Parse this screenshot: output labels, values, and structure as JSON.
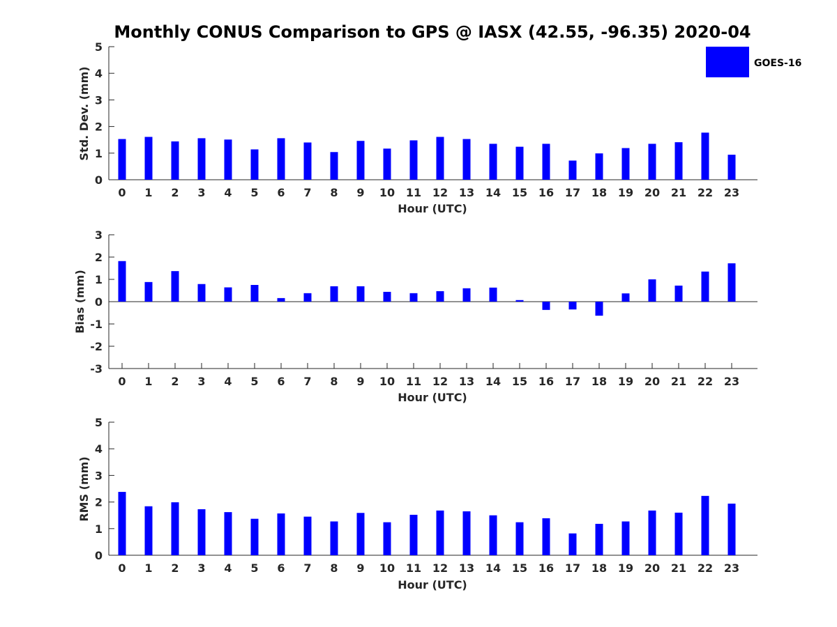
{
  "title": "Monthly CONUS Comparison to GPS @ IASX (42.55, -96.35) 2020-04",
  "legend": {
    "label": "GOES-16",
    "color": "#0000ff",
    "placement": "top-right"
  },
  "chart_data": [
    {
      "type": "bar",
      "xlabel": "Hour (UTC)",
      "ylabel": "Std. Dev. (mm)",
      "ylim": [
        0,
        5
      ],
      "yticks": [
        0,
        1,
        2,
        3,
        4,
        5
      ],
      "categories": [
        "0",
        "1",
        "2",
        "3",
        "4",
        "5",
        "6",
        "7",
        "8",
        "9",
        "10",
        "11",
        "12",
        "13",
        "14",
        "15",
        "16",
        "17",
        "18",
        "19",
        "20",
        "21",
        "22",
        "23"
      ],
      "series": [
        {
          "name": "GOES-16",
          "color": "#0000ff",
          "values": [
            1.53,
            1.61,
            1.44,
            1.56,
            1.51,
            1.14,
            1.56,
            1.4,
            1.04,
            1.46,
            1.17,
            1.48,
            1.61,
            1.53,
            1.35,
            1.24,
            1.35,
            0.72,
            0.99,
            1.19,
            1.35,
            1.41,
            1.77,
            0.94
          ]
        }
      ],
      "grid": false
    },
    {
      "type": "bar",
      "xlabel": "Hour (UTC)",
      "ylabel": "Bias (mm)",
      "ylim": [
        -3,
        3
      ],
      "yticks": [
        -3,
        -2,
        -1,
        0,
        1,
        2,
        3
      ],
      "categories": [
        "0",
        "1",
        "2",
        "3",
        "4",
        "5",
        "6",
        "7",
        "8",
        "9",
        "10",
        "11",
        "12",
        "13",
        "14",
        "15",
        "16",
        "17",
        "18",
        "19",
        "20",
        "21",
        "22",
        "23"
      ],
      "series": [
        {
          "name": "GOES-16",
          "color": "#0000ff",
          "values": [
            1.82,
            0.88,
            1.37,
            0.79,
            0.64,
            0.75,
            0.16,
            0.38,
            0.69,
            0.69,
            0.44,
            0.38,
            0.47,
            0.6,
            0.63,
            0.07,
            -0.37,
            -0.35,
            -0.63,
            0.37,
            1.0,
            0.72,
            1.35,
            1.72
          ]
        }
      ],
      "zero_line": true,
      "grid": false
    },
    {
      "type": "bar",
      "xlabel": "Hour (UTC)",
      "ylabel": "RMS (mm)",
      "ylim": [
        0,
        5
      ],
      "yticks": [
        0,
        1,
        2,
        3,
        4,
        5
      ],
      "categories": [
        "0",
        "1",
        "2",
        "3",
        "4",
        "5",
        "6",
        "7",
        "8",
        "9",
        "10",
        "11",
        "12",
        "13",
        "14",
        "15",
        "16",
        "17",
        "18",
        "19",
        "20",
        "21",
        "22",
        "23"
      ],
      "series": [
        {
          "name": "GOES-16",
          "color": "#0000ff",
          "values": [
            2.38,
            1.84,
            1.99,
            1.73,
            1.62,
            1.37,
            1.57,
            1.45,
            1.27,
            1.59,
            1.24,
            1.52,
            1.68,
            1.65,
            1.5,
            1.24,
            1.39,
            0.82,
            1.18,
            1.27,
            1.68,
            1.6,
            2.23,
            1.94
          ]
        }
      ],
      "grid": false
    }
  ]
}
